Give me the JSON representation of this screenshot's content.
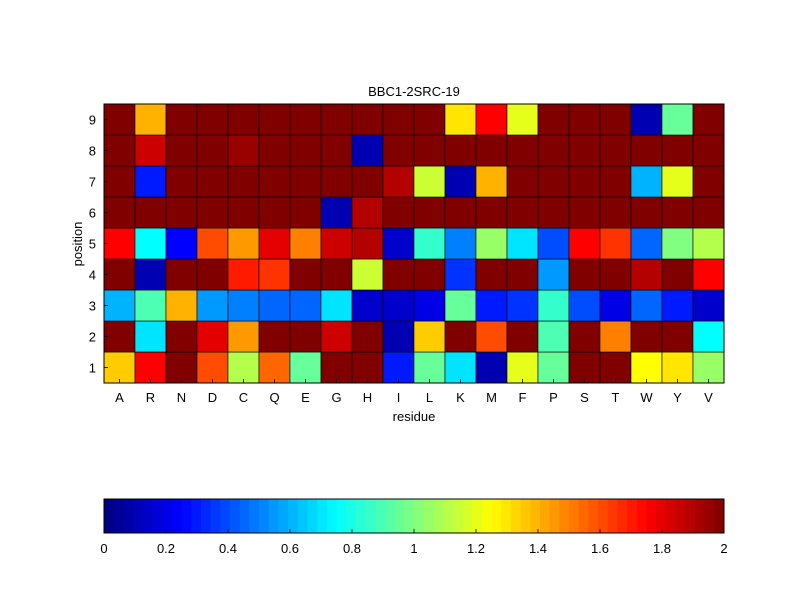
{
  "chart_data": {
    "type": "heatmap",
    "title": "BBC1-2SRC-19",
    "xlabel": "residue",
    "ylabel": "position",
    "x_categories": [
      "A",
      "R",
      "N",
      "D",
      "C",
      "Q",
      "E",
      "G",
      "H",
      "I",
      "L",
      "K",
      "M",
      "F",
      "P",
      "S",
      "T",
      "W",
      "Y",
      "V"
    ],
    "y_categories": [
      "1",
      "2",
      "3",
      "4",
      "5",
      "6",
      "7",
      "8",
      "9"
    ],
    "values": [
      [
        1.35,
        1.75,
        2.0,
        1.6,
        1.1,
        1.55,
        0.95,
        2.0,
        2.0,
        0.3,
        0.95,
        0.7,
        0.1,
        1.2,
        0.95,
        2.0,
        2.0,
        1.25,
        1.3,
        1.05
      ],
      [
        2.0,
        0.7,
        2.0,
        1.8,
        1.45,
        2.0,
        2.0,
        1.85,
        2.0,
        0.1,
        1.35,
        2.0,
        1.6,
        2.0,
        0.9,
        2.0,
        1.5,
        2.0,
        2.0,
        0.75
      ],
      [
        0.6,
        0.9,
        1.4,
        0.55,
        0.5,
        0.45,
        0.45,
        0.7,
        0.15,
        0.15,
        0.2,
        0.95,
        0.3,
        0.35,
        0.85,
        0.4,
        0.2,
        0.45,
        0.3,
        0.15
      ],
      [
        2.0,
        0.1,
        2.0,
        2.0,
        1.7,
        1.65,
        2.0,
        2.0,
        1.15,
        2.0,
        2.0,
        0.35,
        2.0,
        2.0,
        0.55,
        2.0,
        2.0,
        1.9,
        2.0,
        1.75
      ],
      [
        1.75,
        0.75,
        0.25,
        1.6,
        1.45,
        1.8,
        1.5,
        1.85,
        1.9,
        0.15,
        0.85,
        0.5,
        1.05,
        0.7,
        0.4,
        1.75,
        1.65,
        0.45,
        1.0,
        1.1
      ],
      [
        2.0,
        2.0,
        2.0,
        2.0,
        2.0,
        2.0,
        2.0,
        0.1,
        1.9,
        2.0,
        2.0,
        2.0,
        2.0,
        2.0,
        2.0,
        2.0,
        2.0,
        2.0,
        2.0,
        2.0
      ],
      [
        2.0,
        0.3,
        2.0,
        2.0,
        2.0,
        2.0,
        2.0,
        2.0,
        2.0,
        1.9,
        1.15,
        0.1,
        1.4,
        2.0,
        2.0,
        2.0,
        2.0,
        0.6,
        1.2,
        2.0
      ],
      [
        2.0,
        1.85,
        2.0,
        2.0,
        1.95,
        2.0,
        2.0,
        2.0,
        0.1,
        2.0,
        2.0,
        2.0,
        2.0,
        2.0,
        2.0,
        2.0,
        2.0,
        2.0,
        2.0,
        2.0
      ],
      [
        2.0,
        1.4,
        2.0,
        2.0,
        2.0,
        2.0,
        2.0,
        2.0,
        2.0,
        2.0,
        2.0,
        1.3,
        1.75,
        1.2,
        2.0,
        2.0,
        2.0,
        0.1,
        0.95,
        2.0
      ]
    ],
    "colormap": "jet",
    "clim": [
      0,
      2
    ],
    "colorbar": {
      "orientation": "horizontal",
      "placement": "bottom",
      "ticks": [
        "0",
        "0.2",
        "0.4",
        "0.6",
        "0.8",
        "1",
        "1.2",
        "1.4",
        "1.6",
        "1.8",
        "2"
      ]
    }
  }
}
